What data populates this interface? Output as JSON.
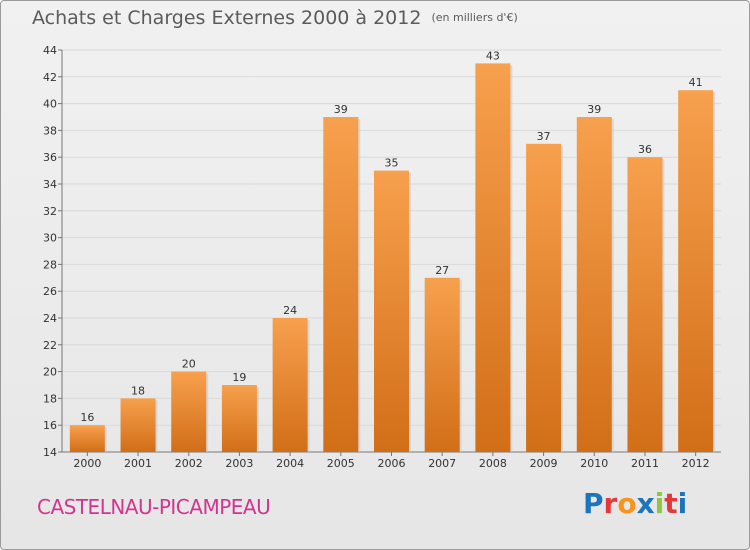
{
  "header": {
    "title": "Achats et Charges Externes 2000 à 2012",
    "unit": "(en milliers d'€)"
  },
  "footer": {
    "commune": "CASTELNAU-PICAMPEAU",
    "logo": "Proxiti"
  },
  "colors": {
    "bar_light": "#f7a04d",
    "bar_dark": "#d26e18",
    "title": "#5b5b5b",
    "commune": "#d2358f"
  },
  "chart_data": {
    "type": "bar",
    "title": "Achats et Charges Externes 2000 à 2012",
    "subtitle": "(en milliers d'€)",
    "categories": [
      "2000",
      "2001",
      "2002",
      "2003",
      "2004",
      "2005",
      "2006",
      "2007",
      "2008",
      "2009",
      "2010",
      "2011",
      "2012"
    ],
    "values": [
      16,
      18,
      20,
      19,
      24,
      39,
      35,
      27,
      43,
      37,
      39,
      36,
      41
    ],
    "ylim": [
      14,
      44
    ],
    "yticks": [
      14,
      16,
      18,
      20,
      22,
      24,
      26,
      28,
      30,
      32,
      34,
      36,
      38,
      40,
      42,
      44
    ],
    "grid": true,
    "xlabel": "",
    "ylabel": ""
  }
}
